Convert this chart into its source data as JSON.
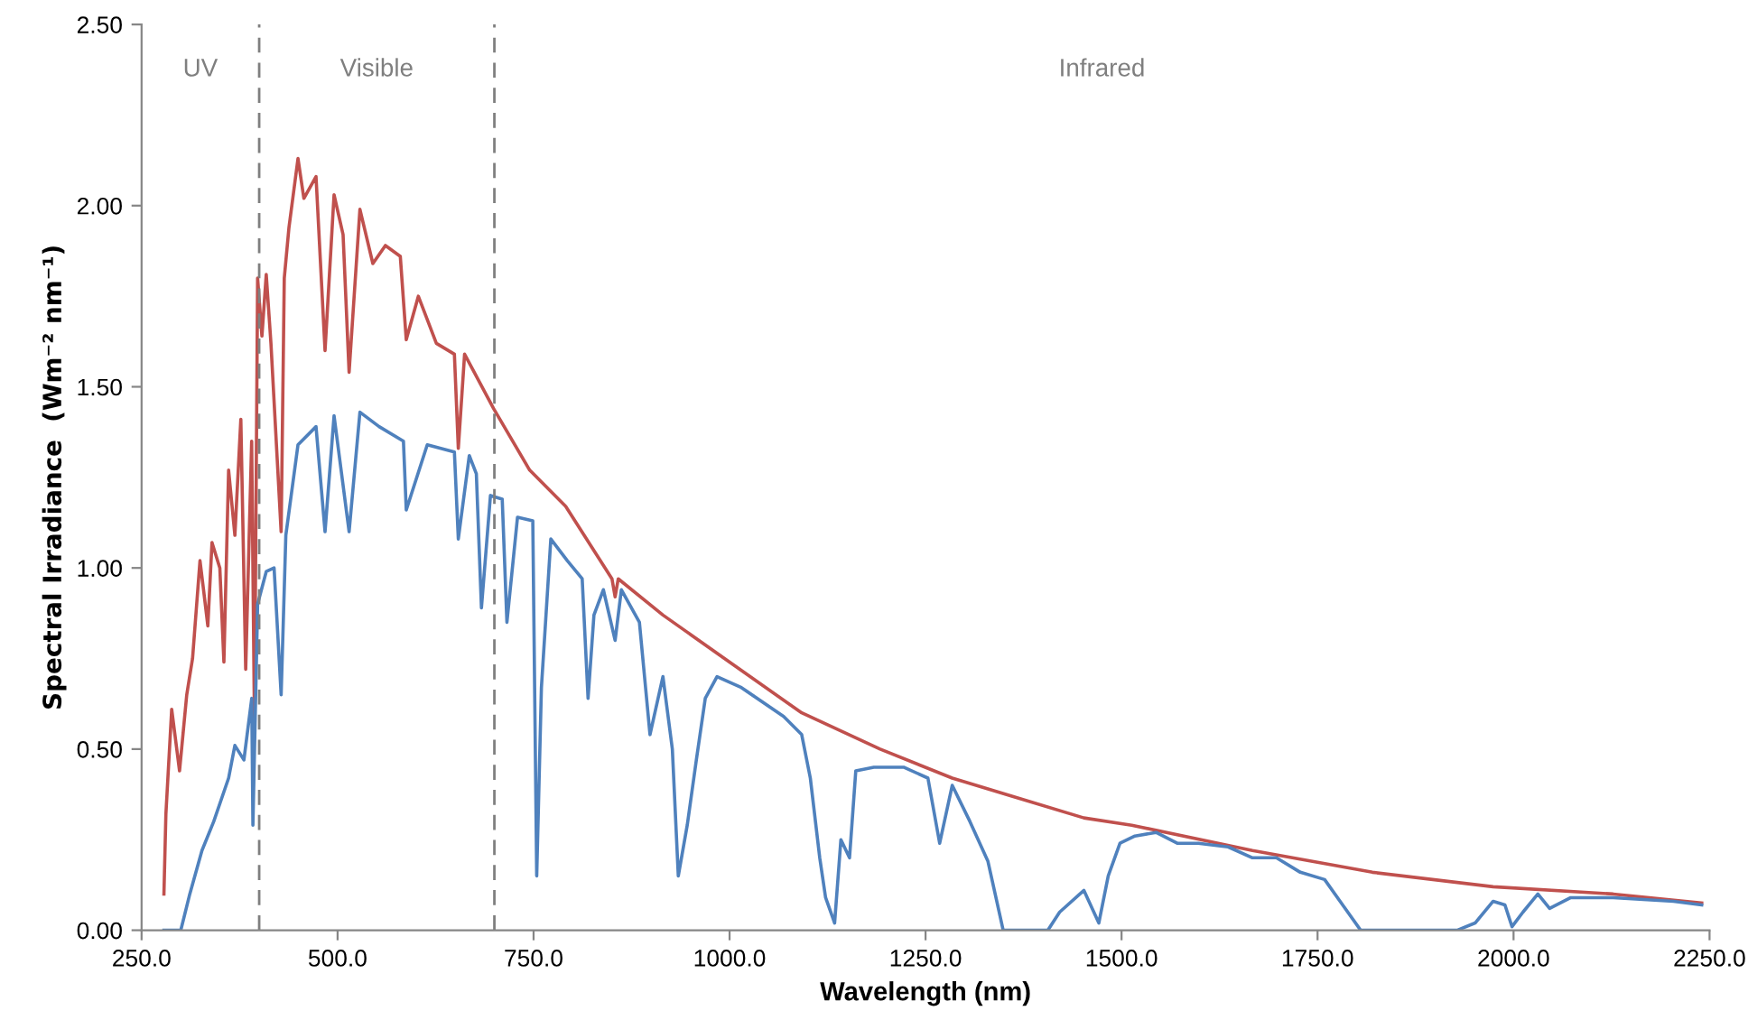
{
  "chart_data": {
    "type": "line",
    "xlabel": "Wavelength (nm)",
    "ylabel": "Spectral Irradiance  (Wm⁻² nm⁻¹)",
    "xlim": [
      250,
      2250
    ],
    "ylim": [
      0,
      2.5
    ],
    "xticks": [
      {
        "value": 250,
        "label": "250.0"
      },
      {
        "value": 500,
        "label": "500.0"
      },
      {
        "value": 750,
        "label": "750.0"
      },
      {
        "value": 1000,
        "label": "1000.0"
      },
      {
        "value": 1250,
        "label": "1250.0"
      },
      {
        "value": 1500,
        "label": "1500.0"
      },
      {
        "value": 1750,
        "label": "1750.0"
      },
      {
        "value": 2000,
        "label": "2000.0"
      },
      {
        "value": 2250,
        "label": "2250.0"
      }
    ],
    "yticks": [
      {
        "value": 0,
        "label": "0.00"
      },
      {
        "value": 0.5,
        "label": "0.50"
      },
      {
        "value": 1.0,
        "label": "1.00"
      },
      {
        "value": 1.5,
        "label": "1.50"
      },
      {
        "value": 2.0,
        "label": "2.00"
      },
      {
        "value": 2.5,
        "label": "2.50"
      }
    ],
    "grid": false,
    "legend": false,
    "marker": "none",
    "line_style": "solid",
    "ref_lines": [
      {
        "axis": "x",
        "value": 400,
        "color": "#7f7f7f",
        "line_style": "dashed"
      },
      {
        "axis": "x",
        "value": 700,
        "color": "#7f7f7f",
        "line_style": "dashed"
      }
    ],
    "annotations": [
      "UV",
      "Visible",
      "Infrared"
    ],
    "series": [
      {
        "color": "#c0504d",
        "x": [
          278.5,
          281,
          288.4,
          298.4,
          307.6,
          315,
          324.5,
          329,
          334.5,
          339.8,
          349.8,
          355,
          361,
          369,
          376.6,
          382.8,
          390.4,
          394,
          398,
          403.5,
          409,
          415,
          428,
          432,
          438,
          449.5,
          457,
          472.5,
          484,
          495.5,
          507,
          514.7,
          528.5,
          545,
          561,
          580,
          587.6,
          603,
          626,
          649,
          654,
          662,
          699,
          745,
          791,
          850,
          854,
          858,
          915,
          1000,
          1092,
          1192,
          1284,
          1360,
          1452,
          1513,
          1667,
          1820,
          1974,
          2127,
          2240
        ],
        "values": [
          0.1,
          0.32,
          0.61,
          0.44,
          0.65,
          0.75,
          1.02,
          0.94,
          0.84,
          1.07,
          1.0,
          0.74,
          1.27,
          1.09,
          1.41,
          0.72,
          1.35,
          0.57,
          1.8,
          1.64,
          1.81,
          1.62,
          1.1,
          1.8,
          1.94,
          2.13,
          2.02,
          2.08,
          1.6,
          2.03,
          1.92,
          1.54,
          1.99,
          1.84,
          1.89,
          1.86,
          1.63,
          1.75,
          1.62,
          1.59,
          1.33,
          1.59,
          1.44,
          1.27,
          1.17,
          0.97,
          0.92,
          0.97,
          0.87,
          0.74,
          0.6,
          0.5,
          0.42,
          0.37,
          0.31,
          0.29,
          0.22,
          0.16,
          0.12,
          0.1,
          0.075
        ]
      },
      {
        "color": "#4f81bd",
        "x": [
          278.5,
          300,
          311.5,
          327,
          342,
          361,
          369,
          380.5,
          390.5,
          392,
          398,
          409,
          419,
          428,
          434,
          449.5,
          472.5,
          484,
          495.5,
          514.7,
          528.5,
          553,
          584,
          587.6,
          614.4,
          649,
          654,
          668,
          677,
          683.5,
          695,
          710,
          716,
          729.5,
          749,
          754,
          760,
          772,
          793,
          812,
          819.5,
          827,
          839,
          854,
          862,
          885,
          898.5,
          915,
          927,
          934.6,
          946,
          957.6,
          969,
          984,
          1015,
          1069,
          1092,
          1103,
          1115,
          1122.5,
          1134,
          1142,
          1153,
          1161,
          1184,
          1222,
          1253,
          1268,
          1284,
          1306.6,
          1329.6,
          1349,
          1406,
          1421,
          1452,
          1471,
          1483,
          1498,
          1517,
          1544,
          1571,
          1598,
          1636,
          1667,
          1697.5,
          1728,
          1759,
          1782,
          1805,
          1928,
          1951,
          1974,
          1989,
          1998,
          2012,
          2031,
          2046,
          2073,
          2127,
          2204,
          2240
        ],
        "values": [
          0,
          0,
          0.1,
          0.22,
          0.3,
          0.42,
          0.51,
          0.47,
          0.64,
          0.29,
          0.9,
          0.99,
          1.0,
          0.65,
          1.09,
          1.34,
          1.39,
          1.1,
          1.42,
          1.1,
          1.43,
          1.39,
          1.35,
          1.16,
          1.34,
          1.32,
          1.08,
          1.31,
          1.26,
          0.89,
          1.2,
          1.19,
          0.85,
          1.14,
          1.13,
          0.15,
          0.67,
          1.08,
          1.02,
          0.97,
          0.64,
          0.87,
          0.94,
          0.8,
          0.94,
          0.85,
          0.54,
          0.7,
          0.5,
          0.15,
          0.29,
          0.47,
          0.64,
          0.7,
          0.67,
          0.59,
          0.54,
          0.42,
          0.2,
          0.09,
          0.02,
          0.25,
          0.2,
          0.44,
          0.45,
          0.45,
          0.42,
          0.24,
          0.4,
          0.3,
          0.19,
          0,
          0,
          0.05,
          0.11,
          0.02,
          0.15,
          0.24,
          0.26,
          0.27,
          0.24,
          0.24,
          0.23,
          0.2,
          0.2,
          0.16,
          0.14,
          0.07,
          0,
          0,
          0.02,
          0.08,
          0.07,
          0.01,
          0.05,
          0.1,
          0.06,
          0.09,
          0.09,
          0.08,
          0.07
        ]
      }
    ]
  }
}
